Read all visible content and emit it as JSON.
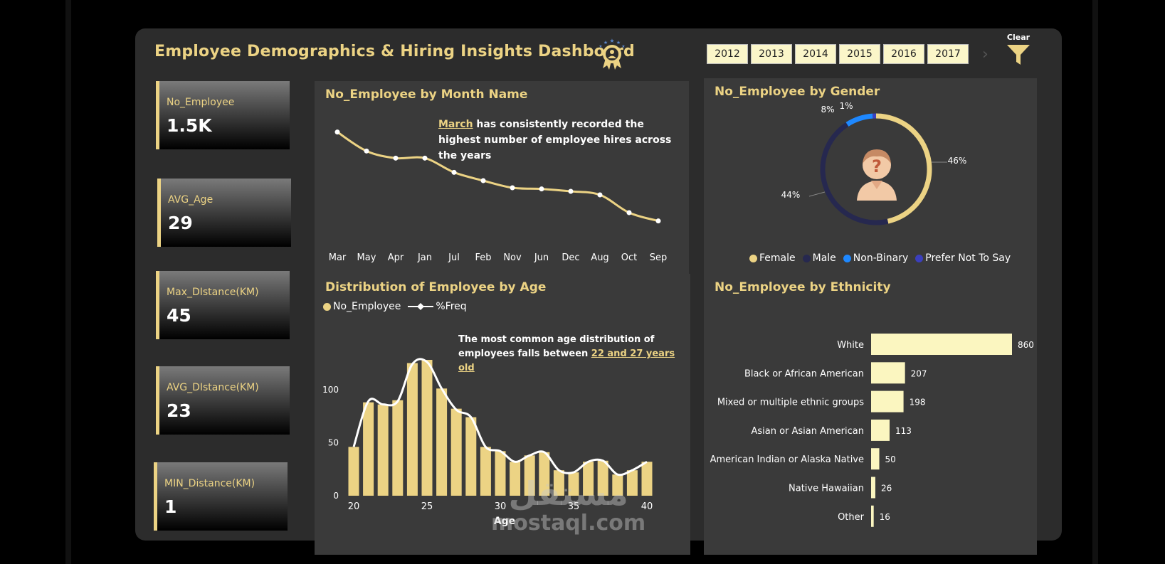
{
  "dashboard": {
    "title": "Employee Demographics & Hiring Insights Dashboard",
    "years": [
      "2012",
      "2013",
      "2014",
      "2015",
      "2016",
      "2017"
    ],
    "clear_label": "Clear",
    "accent": "#ecd384"
  },
  "kpis": [
    {
      "label": "No_Employee",
      "value": "1.5K"
    },
    {
      "label": "AVG_Age",
      "value": "29"
    },
    {
      "label": "Max_DIstance(KM)",
      "value": "45"
    },
    {
      "label": "AVG_DIstance(KM)",
      "value": "23"
    },
    {
      "label": "MIN_Distance(KM)",
      "value": "1"
    }
  ],
  "month_panel": {
    "title": "No_Employee by Month Name",
    "note_highlight": "March",
    "note_text": " has consistently recorded the highest number of employee hires across the years"
  },
  "gender_panel": {
    "title": "No_Employee by Gender",
    "legend": [
      "Female",
      "Male",
      "Non-Binary",
      "Prefer Not To Say"
    ]
  },
  "age_panel": {
    "title": "Distribution of Employee by Age",
    "legend_bar": "No_Employee",
    "legend_line": "%Freq",
    "note_text": "The most common age distribution of employees falls between ",
    "note_highlight": "22 and 27 years old"
  },
  "ethnicity_panel": {
    "title": "No_Employee by Ethnicity"
  },
  "watermark": {
    "arabic": "مستقل",
    "latin": "mostaql.com"
  },
  "chart_data": [
    {
      "type": "line",
      "title": "No_Employee by Month Name",
      "categories": [
        "Mar",
        "May",
        "Apr",
        "Jan",
        "Jul",
        "Feb",
        "Nov",
        "Jun",
        "Dec",
        "Aug",
        "Oct",
        "Sep"
      ],
      "values": [
        163,
        147,
        141,
        141,
        129,
        122,
        116,
        115,
        113,
        110,
        95,
        88
      ],
      "xlabel": "",
      "ylabel": "",
      "ylim": [
        80,
        170
      ],
      "color": "#ecd384"
    },
    {
      "type": "pie",
      "title": "No_Employee by Gender",
      "categories": [
        "Female",
        "Male",
        "Non-Binary",
        "Prefer Not To Say"
      ],
      "values": [
        46,
        44,
        8,
        1
      ],
      "labels": [
        "46%",
        "44%",
        "8%",
        "1%"
      ],
      "colors": [
        "#ecd384",
        "#26284f",
        "#1e88ff",
        "#3b3fbd"
      ]
    },
    {
      "type": "bar",
      "title": "Distribution of Employee by Age",
      "xlabel": "Age",
      "ylabel": "",
      "categories": [
        20,
        21,
        22,
        23,
        24,
        25,
        26,
        27,
        28,
        29,
        30,
        31,
        32,
        33,
        34,
        35,
        36,
        37,
        38,
        39,
        40
      ],
      "values": [
        46,
        88,
        86,
        90,
        125,
        128,
        101,
        82,
        74,
        46,
        42,
        32,
        38,
        41,
        24,
        22,
        32,
        33,
        20,
        24,
        32
      ],
      "line_values": [
        46,
        89,
        86,
        89,
        124,
        126,
        101,
        81,
        74,
        46,
        42,
        32,
        38,
        41,
        24,
        22,
        32,
        33,
        20,
        24,
        32
      ],
      "ylim": [
        0,
        130
      ],
      "yticks": [
        0,
        50,
        100
      ],
      "xticks": [
        20,
        25,
        30,
        35,
        40
      ]
    },
    {
      "type": "bar",
      "orientation": "horizontal",
      "title": "No_Employee by Ethnicity",
      "categories": [
        "White",
        "Black or African American",
        "Mixed or multiple ethnic groups",
        "Asian or Asian American",
        "American Indian or Alaska Native",
        "Native Hawaiian",
        "Other"
      ],
      "values": [
        860,
        207,
        198,
        113,
        50,
        26,
        16
      ]
    }
  ]
}
